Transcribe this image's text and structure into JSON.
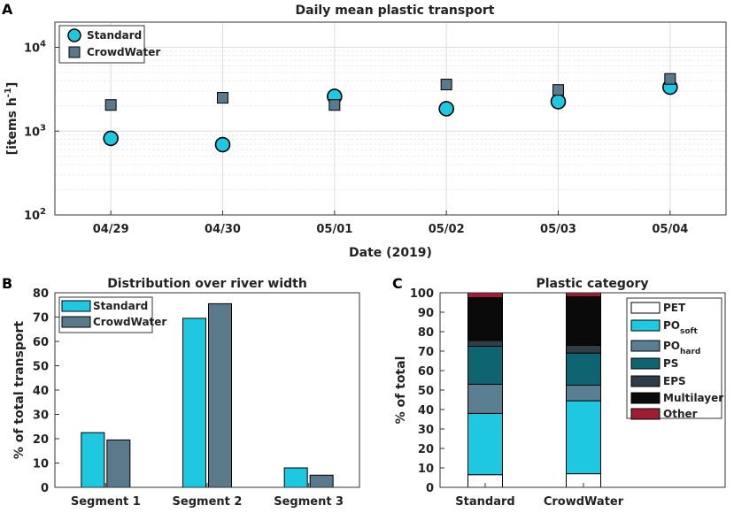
{
  "panels": {
    "a": "A",
    "b": "B",
    "c": "C"
  },
  "chart_data": [
    {
      "type": "scatter",
      "title": "Daily mean plastic transport",
      "xlabel": "Date (2019)",
      "ylabel_main": "[items h",
      "ylabel_sup": "-1",
      "ylabel_end": "]",
      "yscale": "log",
      "ylim": [
        100,
        20000
      ],
      "ytick_values": [
        100,
        1000,
        10000
      ],
      "ytick_base": "10",
      "ytick_exps": [
        "2",
        "3",
        "4"
      ],
      "categories": [
        "04/29",
        "04/30",
        "05/01",
        "05/02",
        "05/03",
        "05/04"
      ],
      "series": [
        {
          "name": "Standard",
          "color": "#1ec8e0",
          "marker": "circle",
          "values": [
            820,
            690,
            2600,
            1850,
            2250,
            3350
          ]
        },
        {
          "name": "CrowdWater",
          "color": "#5a7a8c",
          "marker": "square",
          "values": [
            2050,
            2500,
            2050,
            3600,
            3100,
            4200
          ]
        }
      ],
      "legend": "top-left"
    },
    {
      "type": "bar",
      "title": "Distribution over river width",
      "xlabel": "",
      "ylabel": "% of total transport",
      "ylim": [
        0,
        80
      ],
      "yticks": [
        "0",
        "10",
        "20",
        "30",
        "40",
        "50",
        "60",
        "70",
        "80"
      ],
      "categories": [
        "Segment 1",
        "Segment 2",
        "Segment 3"
      ],
      "series": [
        {
          "name": "Standard",
          "color": "#1ec8e0",
          "values": [
            22.5,
            69.5,
            8
          ]
        },
        {
          "name": "CrowdWater",
          "color": "#5a7a8c",
          "values": [
            19.5,
            75.5,
            5
          ]
        }
      ],
      "legend": "top-left"
    },
    {
      "type": "bar",
      "stacked": true,
      "title": "Plastic category",
      "xlabel": "",
      "ylabel": "% of total",
      "ylim": [
        0,
        100
      ],
      "yticks": [
        "0",
        "10",
        "20",
        "30",
        "40",
        "50",
        "60",
        "70",
        "80",
        "90",
        "100"
      ],
      "categories": [
        "Standard",
        "CrowdWater"
      ],
      "series": [
        {
          "name": "PET",
          "sub": "",
          "color": "#ffffff",
          "values": [
            6.5,
            7
          ]
        },
        {
          "name": "PO",
          "sub": "soft",
          "color": "#1ec8e0",
          "values": [
            31.5,
            37.5
          ]
        },
        {
          "name": "PO",
          "sub": "hard",
          "color": "#5a7f93",
          "values": [
            15,
            8
          ]
        },
        {
          "name": "PS",
          "sub": "",
          "color": "#0e6470",
          "values": [
            19.5,
            16.5
          ]
        },
        {
          "name": "EPS",
          "sub": "",
          "color": "#2e3d46",
          "values": [
            3,
            4
          ]
        },
        {
          "name": "Multilayer",
          "sub": "",
          "color": "#0a0a0a",
          "values": [
            22,
            25
          ]
        },
        {
          "name": "Other",
          "sub": "",
          "color": "#9e1d34",
          "values": [
            2.5,
            2
          ]
        }
      ],
      "legend": "right"
    }
  ]
}
